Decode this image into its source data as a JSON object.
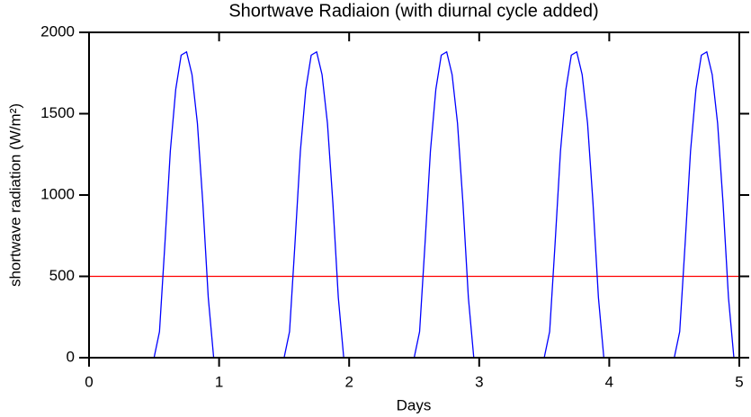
{
  "chart_data": {
    "type": "line",
    "title": "Shortwave Radiaion (with diurnal cycle added)",
    "xlabel": "Days",
    "ylabel": "shortwave radiation (W/m²)",
    "x": [
      0,
      0.5,
      0.5417,
      0.5833,
      0.625,
      0.6667,
      0.7083,
      0.75,
      0.7917,
      0.8333,
      0.875,
      0.9167,
      0.9583,
      1.5,
      1.5417,
      1.5833,
      1.625,
      1.6667,
      1.7083,
      1.75,
      1.7917,
      1.8333,
      1.875,
      1.9167,
      1.9583,
      2.5,
      2.5417,
      2.5833,
      2.625,
      2.6667,
      2.7083,
      2.75,
      2.7917,
      2.8333,
      2.875,
      2.9167,
      2.9583,
      3.5,
      3.5417,
      3.5833,
      3.625,
      3.6667,
      3.7083,
      3.75,
      3.7917,
      3.8333,
      3.875,
      3.9167,
      3.9583,
      4.5,
      4.5417,
      4.5833,
      4.625,
      4.6667,
      4.7083,
      4.75,
      4.7917,
      4.8333,
      4.875,
      4.9167,
      4.9583,
      5
    ],
    "series": [
      {
        "name": "shortwave radiation",
        "color": "#0000ff",
        "values": [
          0,
          0,
          160,
          700,
          1270,
          1650,
          1860,
          1880,
          1740,
          1440,
          950,
          370,
          0,
          0,
          160,
          700,
          1270,
          1650,
          1860,
          1880,
          1740,
          1440,
          950,
          370,
          0,
          0,
          160,
          700,
          1270,
          1650,
          1860,
          1880,
          1740,
          1440,
          950,
          370,
          0,
          0,
          160,
          700,
          1270,
          1650,
          1860,
          1880,
          1740,
          1440,
          950,
          370,
          0,
          0,
          160,
          700,
          1270,
          1650,
          1860,
          1880,
          1740,
          1440,
          950,
          370,
          0,
          0
        ]
      }
    ],
    "hlines": [
      {
        "value": 500,
        "color": "#ff0000"
      }
    ],
    "xlim": [
      0,
      5
    ],
    "xticks": [
      0,
      1,
      2,
      3,
      4,
      5
    ],
    "ylim": [
      0,
      2000
    ],
    "yticks": [
      0,
      500,
      1000,
      1500,
      2000
    ]
  }
}
